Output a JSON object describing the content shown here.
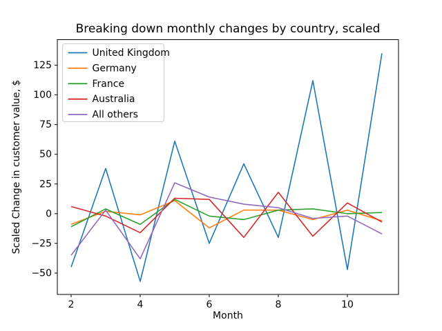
{
  "figure": {
    "background": "#ffffff"
  },
  "chart_data": {
    "type": "line",
    "title": "Breaking down monthly changes by country, scaled",
    "xlabel": "Month",
    "ylabel": "Scaled Change in customer value, $",
    "x": [
      2,
      3,
      4,
      5,
      6,
      7,
      8,
      9,
      10,
      11
    ],
    "series": [
      {
        "name": "United Kingdom",
        "color": "#1f77b4",
        "values": [
          -45,
          38,
          -57,
          61,
          -25,
          42,
          -20,
          112,
          -47,
          135
        ]
      },
      {
        "name": "Germany",
        "color": "#ff7f0e",
        "values": [
          -9,
          2,
          -1,
          11,
          -12,
          3,
          3,
          -5,
          3,
          -6
        ]
      },
      {
        "name": "France",
        "color": "#2ca02c",
        "values": [
          -11,
          4,
          -9,
          12,
          -2,
          -5,
          3,
          4,
          0,
          1
        ]
      },
      {
        "name": "Australia",
        "color": "#d62728",
        "values": [
          6,
          -2,
          -16,
          13,
          12,
          -20,
          18,
          -19,
          9,
          -7
        ]
      },
      {
        "name": "All others",
        "color": "#9467bd",
        "values": [
          -35,
          3,
          -38,
          26,
          14,
          8,
          5,
          -4,
          -2,
          -17
        ]
      }
    ],
    "xticks": [
      2,
      4,
      6,
      8,
      10
    ],
    "yticks": [
      125,
      100,
      75,
      50,
      25,
      0,
      -25,
      -50
    ],
    "xlim": [
      1.6,
      11.48
    ],
    "ylim": [
      -68,
      146.5
    ],
    "grid": false,
    "legend_position": "upper left",
    "axis_color": "#000000",
    "legend_edge_color": "#cccccc"
  }
}
